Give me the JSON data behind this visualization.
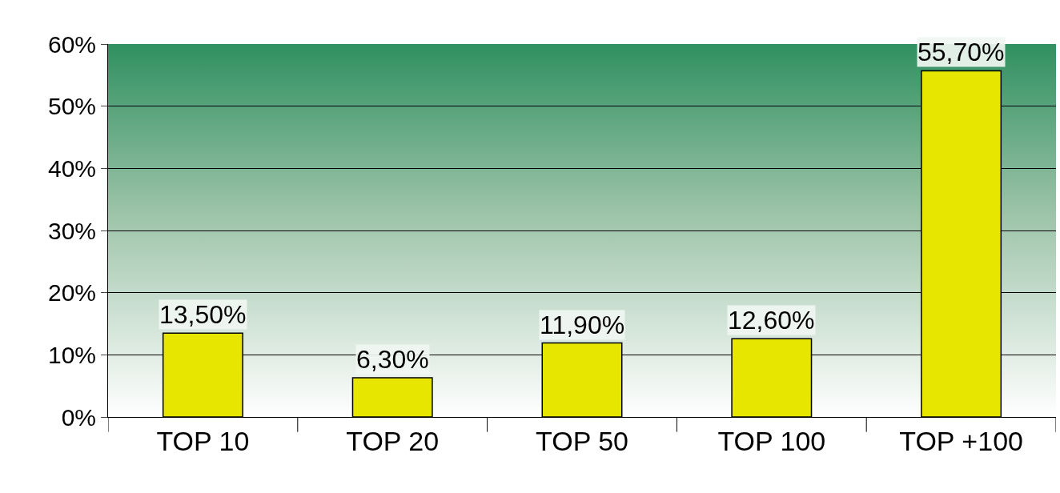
{
  "chart_data": {
    "type": "bar",
    "categories": [
      "TOP 10",
      "TOP 20",
      "TOP 50",
      "TOP 100",
      "TOP +100"
    ],
    "values": [
      13.5,
      6.3,
      11.9,
      12.6,
      55.7
    ],
    "value_labels": [
      "13,50%",
      "6,30%",
      "11,90%",
      "12,60%",
      "55,70%"
    ],
    "color": "#e6e600",
    "ylim": [
      0,
      60
    ],
    "yticks": [
      {
        "value": 0,
        "label": "0%"
      },
      {
        "value": 10,
        "label": "10%"
      },
      {
        "value": 20,
        "label": "20%"
      },
      {
        "value": 30,
        "label": "30%"
      },
      {
        "value": 40,
        "label": "40%"
      },
      {
        "value": 50,
        "label": "50%"
      },
      {
        "value": 60,
        "label": "60%"
      }
    ],
    "grid": "y"
  }
}
